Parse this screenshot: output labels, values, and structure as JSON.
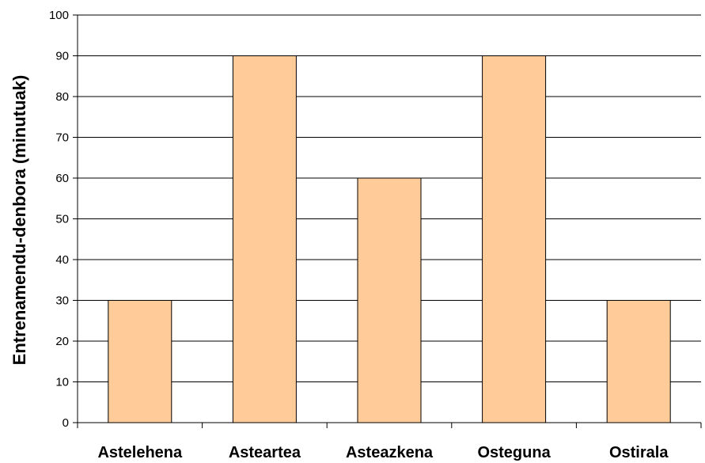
{
  "chart_data": {
    "type": "bar",
    "title": "",
    "xlabel": "",
    "ylabel": "Entrenamendu-denbora (minutuak)",
    "categories": [
      "Astelehena",
      "Asteartea",
      "Asteazkena",
      "Osteguna",
      "Ostirala"
    ],
    "series": [
      {
        "values": [
          30,
          90,
          60,
          90,
          30
        ]
      }
    ],
    "ylim": [
      0,
      100
    ],
    "yticks": [
      0,
      10,
      20,
      30,
      40,
      50,
      60,
      70,
      80,
      90,
      100
    ],
    "ytick_labels": [
      "0",
      "10",
      "20",
      "30",
      "40",
      "50",
      "60",
      "70",
      "80",
      "90",
      "100"
    ],
    "grid": true,
    "legend": "none",
    "colors": {
      "bar_fill": "#FFCC99",
      "bar_stroke": "#000000",
      "gridline": "#000000",
      "background": "#FFFFFF"
    }
  }
}
